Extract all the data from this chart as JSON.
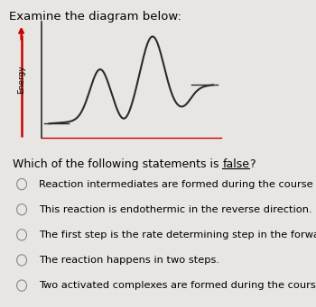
{
  "title": "Examine the diagram below:",
  "ylabel": "Energy",
  "bg_color": "#e8e6e3",
  "curve_color": "#2b2b2b",
  "axis_color": "#2b2b2b",
  "arrow_color": "#cc0000",
  "question_prefix": "Which of the following statements is ",
  "question_false": "false",
  "question_suffix": "?",
  "options": [
    "Reaction intermediates are formed during the course of this reaction.",
    "This reaction is endothermic in the reverse direction.",
    "The first step is the rate determining step in the forward direction.",
    "The reaction happens in two steps.",
    "Two activated complexes are formed during the course of this reaction."
  ],
  "title_fontsize": 9.5,
  "question_fontsize": 9.0,
  "option_fontsize": 8.2,
  "ylabel_fontsize": 6.5
}
